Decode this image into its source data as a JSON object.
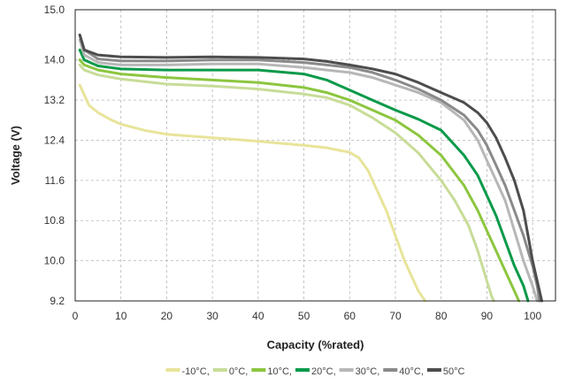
{
  "chart_data": {
    "type": "line",
    "title": "",
    "xlabel": "Capacity (%rated)",
    "ylabel": "Voltage (V)",
    "xlim": [
      0,
      105
    ],
    "ylim": [
      9.2,
      15.0
    ],
    "xticks": [
      "0",
      "10",
      "20",
      "30",
      "40",
      "50",
      "60",
      "70",
      "80",
      "90",
      "100"
    ],
    "yticks": [
      "9.2",
      "10.0",
      "10.8",
      "11.6",
      "12.4",
      "13.2",
      "14.0",
      "15.0"
    ],
    "ytick_values": [
      9.2,
      10.0,
      10.8,
      11.6,
      12.4,
      13.2,
      14.0,
      15.0
    ],
    "grid": true,
    "legend_position": "bottom-center",
    "series": [
      {
        "name": "-10°C,",
        "color": "#e8e49a",
        "x": [
          1,
          2,
          3,
          5,
          8,
          10,
          15,
          20,
          30,
          40,
          50,
          55,
          60,
          62,
          64,
          66,
          68,
          70,
          72,
          74,
          75,
          76.5
        ],
        "y": [
          13.5,
          13.3,
          13.1,
          12.95,
          12.8,
          12.72,
          12.6,
          12.52,
          12.45,
          12.38,
          12.3,
          12.25,
          12.16,
          12.05,
          11.8,
          11.4,
          11.0,
          10.5,
          10.0,
          9.6,
          9.4,
          9.2
        ]
      },
      {
        "name": "0°C,",
        "color": "#c8dc98",
        "x": [
          1,
          2,
          5,
          10,
          20,
          30,
          40,
          50,
          55,
          60,
          65,
          70,
          75,
          80,
          83,
          86,
          88,
          90,
          91,
          91.5
        ],
        "y": [
          13.9,
          13.8,
          13.7,
          13.62,
          13.52,
          13.48,
          13.42,
          13.32,
          13.25,
          13.1,
          12.85,
          12.55,
          12.15,
          11.6,
          11.2,
          10.7,
          10.2,
          9.6,
          9.3,
          9.2
        ]
      },
      {
        "name": "10°C,",
        "color": "#8cc63f",
        "x": [
          1,
          2,
          5,
          10,
          20,
          30,
          40,
          50,
          55,
          60,
          65,
          70,
          75,
          80,
          85,
          88,
          90,
          92,
          94,
          96,
          97
        ],
        "y": [
          14.0,
          13.9,
          13.8,
          13.72,
          13.65,
          13.6,
          13.55,
          13.45,
          13.35,
          13.2,
          13.0,
          12.8,
          12.5,
          12.1,
          11.5,
          11.0,
          10.6,
          10.2,
          9.8,
          9.4,
          9.2
        ]
      },
      {
        "name": "20°C,",
        "color": "#0a9a4a",
        "x": [
          1,
          2,
          5,
          10,
          20,
          30,
          40,
          50,
          55,
          60,
          65,
          70,
          75,
          80,
          85,
          88,
          90,
          92,
          94,
          96,
          98,
          99
        ],
        "y": [
          14.2,
          14.0,
          13.88,
          13.82,
          13.8,
          13.8,
          13.8,
          13.72,
          13.6,
          13.4,
          13.2,
          13.0,
          12.82,
          12.6,
          12.1,
          11.7,
          11.3,
          10.9,
          10.4,
          9.9,
          9.5,
          9.2
        ]
      },
      {
        "name": "30°C,",
        "color": "#b7b7b7",
        "x": [
          1,
          2,
          5,
          10,
          20,
          30,
          40,
          50,
          55,
          60,
          65,
          70,
          75,
          80,
          85,
          88,
          90,
          92,
          94,
          96,
          98,
          100,
          101
        ],
        "y": [
          14.4,
          14.1,
          13.95,
          13.9,
          13.9,
          13.92,
          13.92,
          13.85,
          13.8,
          13.75,
          13.65,
          13.5,
          13.35,
          13.15,
          12.8,
          12.4,
          12.0,
          11.6,
          11.2,
          10.6,
          10.0,
          9.5,
          9.2
        ]
      },
      {
        "name": "40°C,",
        "color": "#8a8a8a",
        "x": [
          1,
          2,
          5,
          10,
          20,
          30,
          40,
          50,
          55,
          60,
          65,
          70,
          75,
          80,
          85,
          88,
          90,
          92,
          94,
          96,
          98,
          100,
          101,
          101.5
        ],
        "y": [
          14.5,
          14.2,
          14.02,
          13.98,
          13.98,
          14.0,
          14.0,
          13.95,
          13.9,
          13.85,
          13.75,
          13.6,
          13.42,
          13.2,
          12.9,
          12.6,
          12.3,
          11.9,
          11.5,
          11.0,
          10.5,
          9.9,
          9.5,
          9.2
        ]
      },
      {
        "name": "50°C",
        "color": "#4d4d4d",
        "x": [
          1,
          2,
          5,
          10,
          20,
          30,
          40,
          50,
          55,
          60,
          65,
          70,
          75,
          80,
          85,
          88,
          90,
          92,
          94,
          96,
          98,
          99,
          100,
          101,
          102
        ],
        "y": [
          14.5,
          14.2,
          14.1,
          14.06,
          14.05,
          14.06,
          14.05,
          14.02,
          13.97,
          13.9,
          13.82,
          13.72,
          13.55,
          13.35,
          13.15,
          12.95,
          12.75,
          12.45,
          12.05,
          11.6,
          11.0,
          10.5,
          10.0,
          9.6,
          9.2
        ]
      }
    ]
  }
}
